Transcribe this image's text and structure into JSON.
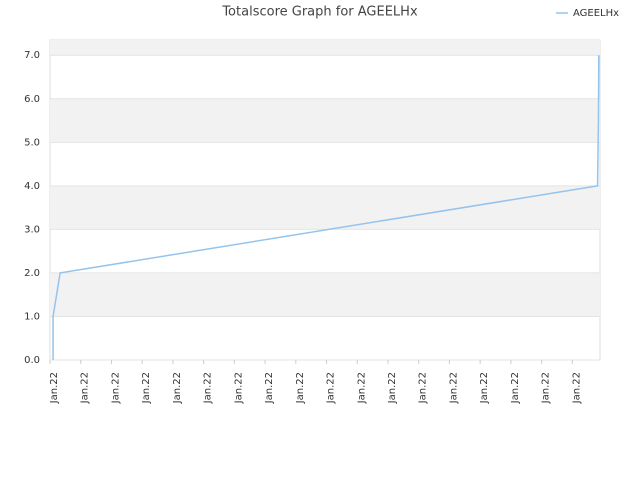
{
  "chart_data": {
    "type": "line",
    "title": "Totalscore Graph for AGEELHx",
    "x": [
      0.1,
      0.1,
      0.33,
      17.82,
      17.85,
      17.86
    ],
    "series": [
      {
        "name": "AGEELHx",
        "color": "#94c4ee",
        "values": [
          0,
          1.0,
          2.0,
          4.0,
          5.5,
          7.0
        ]
      }
    ],
    "xlim": [
      0,
      17.9
    ],
    "xticks": [
      {
        "value": 0,
        "label": "Jan.22"
      },
      {
        "value": 1,
        "label": "Jan.22"
      },
      {
        "value": 2,
        "label": "Jan.22"
      },
      {
        "value": 3,
        "label": "Jan.22"
      },
      {
        "value": 4,
        "label": "Jan.22"
      },
      {
        "value": 5,
        "label": "Jan.22"
      },
      {
        "value": 6,
        "label": "Jan.22"
      },
      {
        "value": 7,
        "label": "Jan.22"
      },
      {
        "value": 8,
        "label": "Jan.22"
      },
      {
        "value": 9,
        "label": "Jan.22"
      },
      {
        "value": 10,
        "label": "Jan.22"
      },
      {
        "value": 11,
        "label": "Jan.22"
      },
      {
        "value": 12,
        "label": "Jan.22"
      },
      {
        "value": 13,
        "label": "Jan.22"
      },
      {
        "value": 14,
        "label": "Jan.22"
      },
      {
        "value": 15,
        "label": "Jan.22"
      },
      {
        "value": 16,
        "label": "Jan.22"
      },
      {
        "value": 17,
        "label": "Jan.22"
      }
    ],
    "ylim": [
      0,
      7.35
    ],
    "yticks": [
      {
        "value": 0,
        "label": "0.0"
      },
      {
        "value": 1,
        "label": "1.0"
      },
      {
        "value": 2,
        "label": "2.0"
      },
      {
        "value": 3,
        "label": "3.0"
      },
      {
        "value": 4,
        "label": "4.0"
      },
      {
        "value": 5,
        "label": "5.0"
      },
      {
        "value": 6,
        "label": "6.0"
      },
      {
        "value": 7,
        "label": "7.0"
      }
    ],
    "bands": true,
    "legend": "top-right"
  }
}
